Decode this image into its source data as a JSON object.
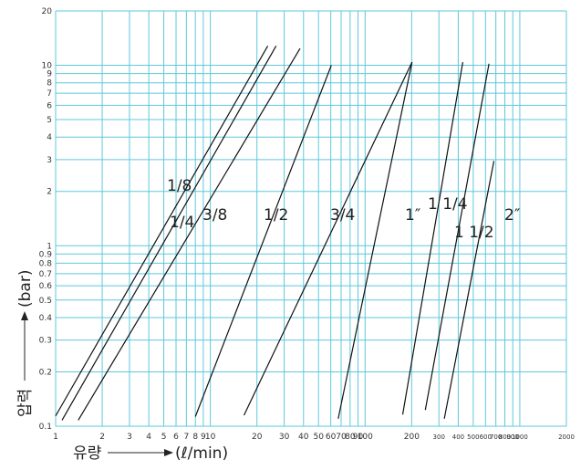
{
  "chart_data": {
    "type": "line",
    "x_scale": "log",
    "y_scale": "log",
    "xlim": [
      1,
      2000
    ],
    "ylim": [
      0.1,
      20
    ],
    "grid": true,
    "grid_color": "#5ec8dc",
    "line_color": "#111111",
    "xlabel": "유량",
    "xlabel_unit": "(ℓ/min)",
    "ylabel": "압력",
    "ylabel_unit": "(bar)",
    "x_ticks": [
      1,
      2,
      3,
      4,
      5,
      6,
      7,
      8,
      9,
      10,
      20,
      30,
      40,
      50,
      60,
      70,
      80,
      90,
      100,
      200,
      300,
      400,
      500,
      600,
      700,
      800,
      900,
      1000,
      2000
    ],
    "x_tick_labels": [
      "1",
      "2",
      "3",
      "4",
      "5",
      "6",
      "7",
      "8",
      "9",
      "10",
      "20",
      "30",
      "40",
      "50",
      "60",
      "70",
      "80",
      "90",
      "100",
      "200",
      "300",
      "400",
      "500",
      "600",
      "700",
      "800",
      "900",
      "1000",
      "2000"
    ],
    "y_ticks": [
      0.1,
      0.2,
      0.3,
      0.4,
      0.5,
      0.6,
      0.7,
      0.8,
      0.9,
      1,
      2,
      3,
      4,
      5,
      6,
      7,
      8,
      9,
      10,
      20
    ],
    "y_tick_labels": [
      "0.1",
      "0.2",
      "0.3",
      "0.4",
      "0.5",
      "0.6",
      "0.7",
      "0.8",
      "0.9",
      "1",
      "2",
      "3",
      "4",
      "5",
      "6",
      "7",
      "8",
      "9",
      "10",
      "20"
    ],
    "series": [
      {
        "name": "1/8",
        "points": [
          [
            1.0,
            0.114
          ],
          [
            23.5,
            12.8
          ]
        ]
      },
      {
        "name": "1/4",
        "points": [
          [
            1.1,
            0.108
          ],
          [
            26.6,
            12.8
          ]
        ]
      },
      {
        "name": "3/8",
        "points": [
          [
            1.4,
            0.108
          ],
          [
            38.0,
            12.4
          ]
        ]
      },
      {
        "name": "1/2",
        "points": [
          [
            8.0,
            0.113
          ],
          [
            60.5,
            10.0
          ]
        ]
      },
      {
        "name": "3/4",
        "points": [
          [
            16.5,
            0.115
          ],
          [
            201.0,
            10.4
          ]
        ]
      },
      {
        "name": "1″",
        "points": [
          [
            67.0,
            0.11
          ],
          [
            201.0,
            10.4
          ]
        ]
      },
      {
        "name": "1 1/4",
        "points": [
          [
            175.0,
            0.116
          ],
          [
            428.0,
            10.4
          ]
        ]
      },
      {
        "name": "1 1/2",
        "points": [
          [
            245.0,
            0.123
          ],
          [
            632.0,
            10.2
          ]
        ]
      },
      {
        "name": "2″",
        "points": [
          [
            325.0,
            0.11
          ],
          [
            680.0,
            2.95
          ]
        ]
      }
    ]
  }
}
